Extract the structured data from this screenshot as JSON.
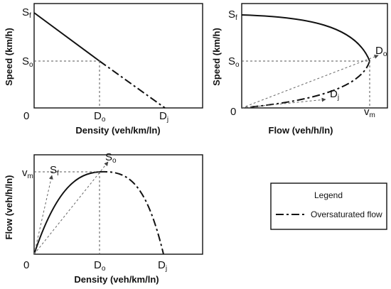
{
  "panel_a": {
    "ylabel": "Speed (km/h)",
    "xlabel": "Density (veh/km/ln)",
    "origin": "0",
    "y_ticks": [
      {
        "main": "S",
        "sub": "f"
      },
      {
        "main": "S",
        "sub": "o"
      }
    ],
    "x_ticks": [
      {
        "main": "D",
        "sub": "o"
      },
      {
        "main": "D",
        "sub": "j"
      }
    ]
  },
  "panel_b": {
    "ylabel": "Speed (km/h)",
    "xlabel": "Flow (veh/h/ln)",
    "origin": "0",
    "y_ticks": [
      {
        "main": "S",
        "sub": "f"
      },
      {
        "main": "S",
        "sub": "o"
      }
    ],
    "x_tick": {
      "main": "v",
      "sub": "m"
    },
    "curve_labels": [
      {
        "main": "D",
        "sub": "o"
      },
      {
        "main": "D",
        "sub": "j"
      }
    ]
  },
  "panel_c": {
    "ylabel": "Flow (veh/h/ln)",
    "xlabel": "Density (veh/km/ln)",
    "origin": "0",
    "y_tick": {
      "main": "v",
      "sub": "m"
    },
    "x_ticks": [
      {
        "main": "D",
        "sub": "o"
      },
      {
        "main": "D",
        "sub": "j"
      }
    ],
    "curve_labels": [
      {
        "main": "S",
        "sub": "f"
      },
      {
        "main": "S",
        "sub": "o"
      }
    ]
  },
  "legend": {
    "title": "Legend",
    "entry": "Oversaturated flow"
  }
}
